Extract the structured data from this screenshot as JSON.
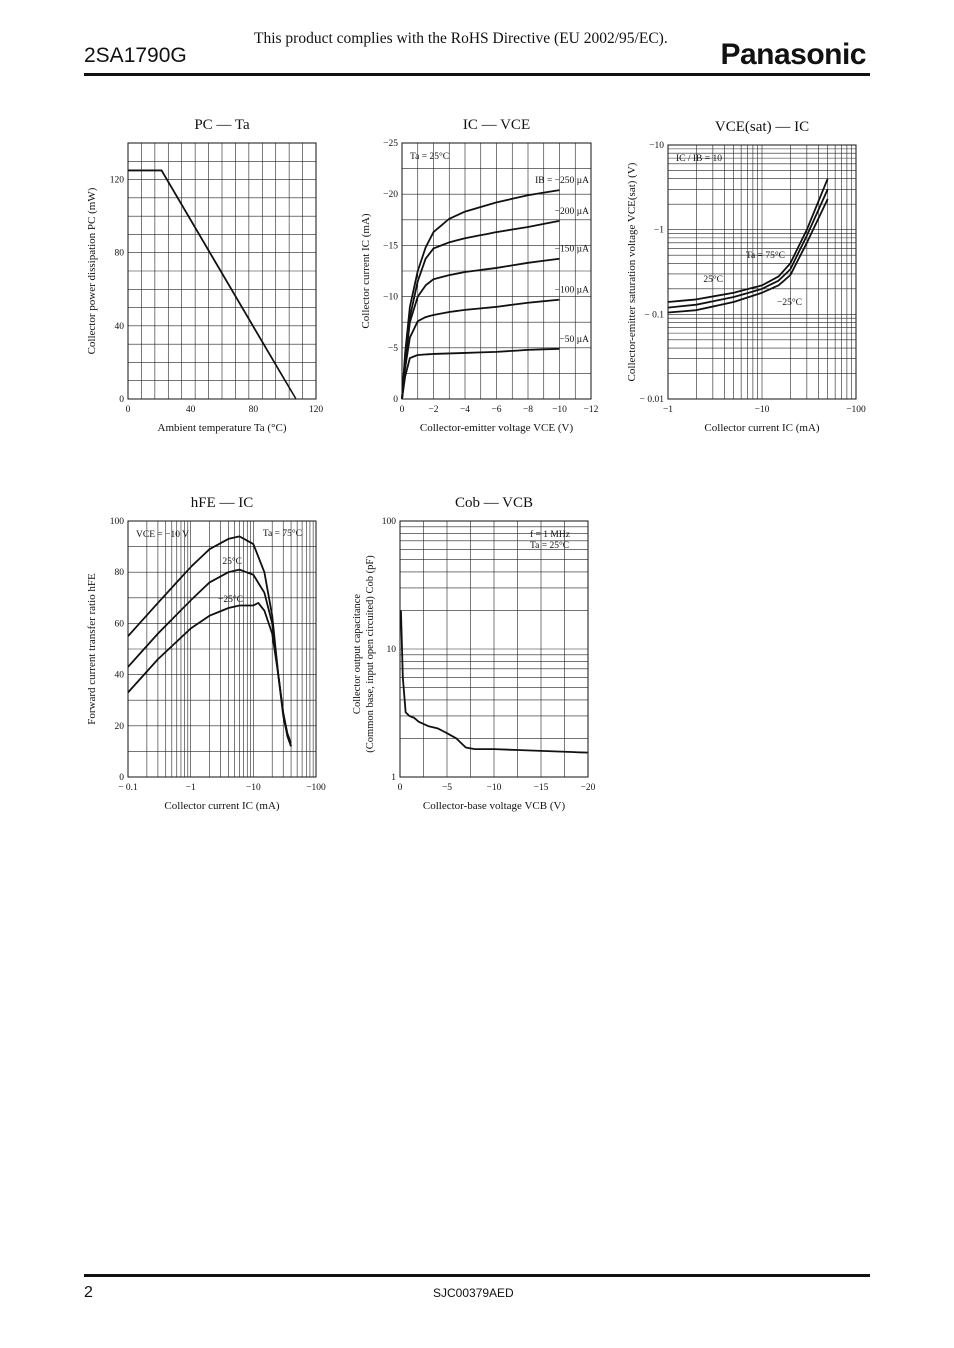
{
  "header": {
    "part_number": "2SA1790G",
    "rohs_note": "This product complies with the RoHS Directive (EU 2002/95/EC).",
    "brand": "Panasonic"
  },
  "footer": {
    "page_number": "2",
    "doc_code": "SJC00379AED"
  },
  "chart_data": [
    {
      "type": "line",
      "title": "PC — Ta",
      "xlabel": "Ambient temperature  Ta  (°C)",
      "ylabel": "Collector power dissipation  PC  (mW)",
      "xlim": [
        0,
        140
      ],
      "ylim": [
        0,
        140
      ],
      "xticks": [
        "0",
        "40",
        "80",
        "120"
      ],
      "yticks": [
        "0",
        "40",
        "80",
        "120"
      ],
      "grid": true,
      "series": [
        {
          "x": [
            0,
            25,
            125
          ],
          "y": [
            125,
            125,
            0
          ]
        }
      ]
    },
    {
      "type": "line",
      "title": "IC — VCE",
      "xlabel": "Collector-emitter voltage  VCE  (V)",
      "ylabel": "Collector current  IC  (mA)",
      "xlim": [
        0,
        -12
      ],
      "ylim": [
        0,
        -25
      ],
      "xticks": [
        "0",
        "−2",
        "−4",
        "−6",
        "−8",
        "−10",
        "−12"
      ],
      "yticks": [
        "0",
        "−5",
        "−10",
        "−15",
        "−20",
        "−25"
      ],
      "grid": true,
      "annotations": [
        "Ta = 25°C"
      ],
      "series": [
        {
          "name": "IB = −250 µA",
          "x": [
            0,
            -0.2,
            -0.5,
            -1,
            -1.5,
            -2,
            -3,
            -4,
            -6,
            -8,
            -10
          ],
          "y": [
            0,
            -4.5,
            -9,
            -12.5,
            -14.8,
            -16.3,
            -17.6,
            -18.3,
            -19.2,
            -19.9,
            -20.4
          ]
        },
        {
          "name": "−200 µA",
          "x": [
            0,
            -0.2,
            -0.5,
            -1,
            -1.5,
            -2,
            -3,
            -4,
            -6,
            -8,
            -10
          ],
          "y": [
            0,
            -4,
            -8,
            -11.5,
            -13.7,
            -14.7,
            -15.3,
            -15.7,
            -16.3,
            -16.8,
            -17.4
          ]
        },
        {
          "name": "−150 µA",
          "x": [
            0,
            -0.2,
            -0.5,
            -1,
            -1.5,
            -2,
            -3,
            -4,
            -6,
            -8,
            -10
          ],
          "y": [
            0,
            -3.5,
            -7.5,
            -10,
            -11.1,
            -11.7,
            -12.1,
            -12.4,
            -12.8,
            -13.3,
            -13.7
          ]
        },
        {
          "name": "−100 µA",
          "x": [
            0,
            -0.2,
            -0.5,
            -1,
            -1.5,
            -2,
            -3,
            -4,
            -6,
            -8,
            -10
          ],
          "y": [
            0,
            -3,
            -6,
            -7.6,
            -8,
            -8.2,
            -8.5,
            -8.7,
            -9,
            -9.4,
            -9.7
          ]
        },
        {
          "name": "−50 µA",
          "x": [
            0,
            -0.2,
            -0.5,
            -1,
            -1.5,
            -2,
            -3,
            -4,
            -6,
            -8,
            -10
          ],
          "y": [
            0,
            -2.2,
            -4,
            -4.3,
            -4.35,
            -4.4,
            -4.45,
            -4.5,
            -4.6,
            -4.8,
            -4.9
          ]
        }
      ]
    },
    {
      "type": "line",
      "title": "VCE(sat) — IC",
      "xlabel": "Collector current  IC  (mA)",
      "ylabel": "Collector-emitter saturation voltage  VCE(sat)  (V)",
      "log_x": true,
      "log_y": true,
      "xlim": [
        -1,
        -100
      ],
      "ylim": [
        -0.01,
        -10
      ],
      "xticks": [
        "−1",
        "−10",
        "−100"
      ],
      "yticks": [
        "− 0.01",
        "− 0.1",
        "−1",
        "−10"
      ],
      "grid": true,
      "annotations": [
        "IC / IB = 10"
      ],
      "series": [
        {
          "name": "Ta = 75°C",
          "x": [
            -1,
            -2,
            -5,
            -10,
            -15,
            -20,
            -30,
            -50
          ],
          "y": [
            -0.14,
            -0.15,
            -0.18,
            -0.22,
            -0.28,
            -0.4,
            -1,
            -4
          ]
        },
        {
          "name": "25°C",
          "x": [
            -1,
            -2,
            -5,
            -10,
            -15,
            -20,
            -30,
            -50
          ],
          "y": [
            -0.12,
            -0.13,
            -0.16,
            -0.2,
            -0.25,
            -0.34,
            -0.85,
            -3
          ]
        },
        {
          "name": "−25°C",
          "x": [
            -1,
            -2,
            -5,
            -10,
            -15,
            -20,
            -30,
            -50
          ],
          "y": [
            -0.105,
            -0.112,
            -0.14,
            -0.18,
            -0.22,
            -0.29,
            -0.7,
            -2.3
          ]
        }
      ]
    },
    {
      "type": "line",
      "title": "hFE — IC",
      "xlabel": "Collector current  IC  (mA)",
      "ylabel": "Forward current transfer ratio  hFE",
      "log_x": true,
      "xlim": [
        -0.1,
        -100
      ],
      "ylim": [
        0,
        100
      ],
      "xticks": [
        "− 0.1",
        "−1",
        "−10",
        "−100"
      ],
      "yticks": [
        "0",
        "20",
        "40",
        "60",
        "80",
        "100"
      ],
      "grid": true,
      "annotations": [
        "VCE = −10 V"
      ],
      "series": [
        {
          "name": "Ta = 75°C",
          "x": [
            -0.1,
            -0.3,
            -1,
            -2,
            -4,
            -6,
            -10,
            -15,
            -20,
            -25,
            -30,
            -35,
            -40
          ],
          "y": [
            55,
            68,
            82,
            89,
            93,
            94,
            91,
            80,
            63,
            40,
            25,
            17,
            13
          ]
        },
        {
          "name": "25°C",
          "x": [
            -0.1,
            -0.3,
            -1,
            -2,
            -4,
            -6,
            -10,
            -15,
            -20,
            -25,
            -30,
            -35,
            -40
          ],
          "y": [
            43,
            56,
            69,
            76,
            80,
            81,
            79,
            72,
            60,
            40,
            25,
            16,
            12
          ]
        },
        {
          "name": "−25°C",
          "x": [
            -0.1,
            -0.3,
            -1,
            -2,
            -4,
            -6,
            -10,
            -12,
            -15,
            -20,
            -25,
            -30,
            -35,
            -40
          ],
          "y": [
            33,
            46,
            58,
            63,
            66,
            67,
            67,
            68,
            65,
            56,
            40,
            24,
            16,
            12
          ]
        }
      ]
    },
    {
      "type": "line",
      "title": "Cob — VCB",
      "xlabel": "Collector-base voltage  VCB  (V)",
      "ylabel": "Collector output capacitance (Common base, input open circuited)  Cob  (pF)",
      "log_y": true,
      "xlim": [
        0,
        -20
      ],
      "ylim": [
        1,
        100
      ],
      "xticks": [
        "0",
        "−5",
        "−10",
        "−15",
        "−20"
      ],
      "yticks": [
        "1",
        "10",
        "100"
      ],
      "grid": true,
      "annotations": [
        "f = 1 MHz",
        "Ta = 25°C"
      ],
      "series": [
        {
          "x": [
            -0.1,
            -0.3,
            -0.6,
            -1,
            -1.5,
            -2,
            -3,
            -4,
            -5,
            -6,
            -7,
            -8,
            -10,
            -15,
            -20
          ],
          "y": [
            20,
            6,
            3.2,
            3.0,
            2.9,
            2.7,
            2.5,
            2.4,
            2.2,
            2.0,
            1.7,
            1.65,
            1.65,
            1.6,
            1.55
          ]
        }
      ]
    }
  ]
}
